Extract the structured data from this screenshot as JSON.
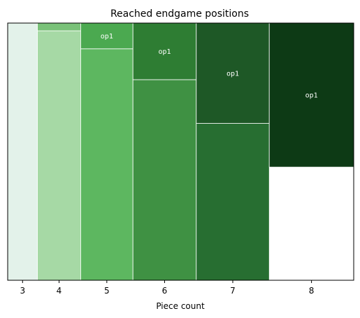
{
  "chart_data": {
    "type": "mosaic",
    "title": "Reached endgame positions",
    "xlabel": "Piece count",
    "ylabel": "",
    "ylim": [
      0,
      1
    ],
    "legend": "none",
    "grid": false,
    "categories": [
      "3",
      "4",
      "5",
      "6",
      "7",
      "8"
    ],
    "widths": [
      0.086,
      0.125,
      0.151,
      0.183,
      0.211,
      0.244
    ],
    "stacks": [
      [
        {
          "label": "",
          "value": 1.0,
          "color": "#e3f2ea"
        }
      ],
      [
        {
          "label": "",
          "value": 0.97,
          "color": "#a6d9a5"
        },
        {
          "label": "",
          "value": 0.03,
          "color": "#79c178"
        }
      ],
      [
        {
          "label": "",
          "value": 0.9,
          "color": "#5db760"
        },
        {
          "label": "op1",
          "value": 0.1,
          "color": "#4ba950"
        }
      ],
      [
        {
          "label": "",
          "value": 0.78,
          "color": "#3f9143"
        },
        {
          "label": "op1",
          "value": 0.22,
          "color": "#2e7d33"
        }
      ],
      [
        {
          "label": "",
          "value": 0.61,
          "color": "#276e31"
        },
        {
          "label": "op1",
          "value": 0.39,
          "color": "#1e5826"
        }
      ],
      [
        {
          "label": "",
          "value": 0.44,
          "color": "#ffffff"
        },
        {
          "label": "op1",
          "value": 0.56,
          "color": "#0d3a15"
        }
      ]
    ]
  }
}
